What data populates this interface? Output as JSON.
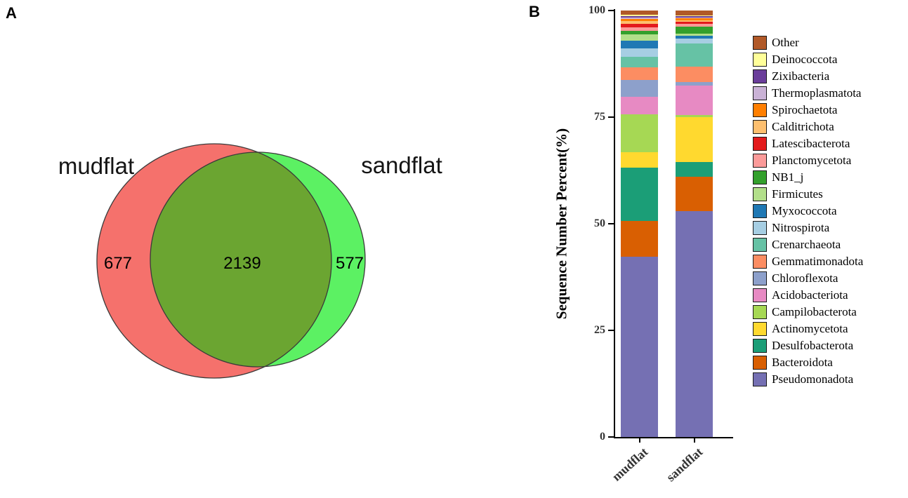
{
  "figure": {
    "panel_a_label": "A",
    "panel_b_label": "B"
  },
  "venn": {
    "left_label": "mudflat",
    "right_label": "sandflat",
    "left_only": "677",
    "overlap": "2139",
    "right_only": "577",
    "left_color": "#F5716C",
    "right_color": "#5CF163",
    "overlap_color": "#6BA531",
    "outline_color": "#3A3A3A"
  },
  "chart_data": [
    {
      "type": "venn",
      "sets": [
        "mudflat",
        "sandflat"
      ],
      "values": {
        "mudflat_only": 677,
        "overlap": 2139,
        "sandflat_only": 577
      }
    },
    {
      "type": "bar",
      "stacked": true,
      "ylabel": "Sequence Number Percent(%)",
      "ylim": [
        0,
        100
      ],
      "yticks": [
        0,
        25,
        50,
        75,
        100
      ],
      "categories": [
        "mudflat",
        "sandflat"
      ],
      "legend_position": "right",
      "series": [
        {
          "name": "Pseudomonadota",
          "color": "#7570B3",
          "values": [
            42.2,
            53.0
          ]
        },
        {
          "name": "Bacteroidota",
          "color": "#D95F02",
          "values": [
            8.5,
            8.0
          ]
        },
        {
          "name": "Desulfobacterota",
          "color": "#1B9E77",
          "values": [
            12.5,
            3.5
          ]
        },
        {
          "name": "Actinomycetota",
          "color": "#FFD92F",
          "values": [
            3.5,
            10.5
          ]
        },
        {
          "name": "Campilobacterota",
          "color": "#A6D854",
          "values": [
            9.0,
            0.5
          ]
        },
        {
          "name": "Acidobacteriota",
          "color": "#E78AC3",
          "values": [
            4.0,
            7.0
          ]
        },
        {
          "name": "Chloroflexota",
          "color": "#8DA0CB",
          "values": [
            4.0,
            0.8
          ]
        },
        {
          "name": "Gemmatimonadota",
          "color": "#FC8D62",
          "values": [
            3.0,
            3.5
          ]
        },
        {
          "name": "Crenarchaeota",
          "color": "#66C2A5",
          "values": [
            2.5,
            5.5
          ]
        },
        {
          "name": "Nitrospirota",
          "color": "#A6CEE3",
          "values": [
            2.0,
            1.2
          ]
        },
        {
          "name": "Myxococcota",
          "color": "#1F78B4",
          "values": [
            1.8,
            0.6
          ]
        },
        {
          "name": "Firmicutes",
          "color": "#B2DF8A",
          "values": [
            1.4,
            0.5
          ]
        },
        {
          "name": "NB1_j",
          "color": "#33A02C",
          "values": [
            0.9,
            1.6
          ]
        },
        {
          "name": "Planctomycetota",
          "color": "#FB9A99",
          "values": [
            0.8,
            0.7
          ]
        },
        {
          "name": "Latescibacterota",
          "color": "#E31A1C",
          "values": [
            0.8,
            0.5
          ]
        },
        {
          "name": "Calditrichota",
          "color": "#FDBF6F",
          "values": [
            0.6,
            0.4
          ]
        },
        {
          "name": "Spirochaetota",
          "color": "#FF7F00",
          "values": [
            0.5,
            0.4
          ]
        },
        {
          "name": "Thermoplasmatota",
          "color": "#CAB2D6",
          "values": [
            0.4,
            0.3
          ]
        },
        {
          "name": "Zixibacteria",
          "color": "#6A3D9A",
          "values": [
            0.3,
            0.2
          ]
        },
        {
          "name": "Deinococcota",
          "color": "#FFFF99",
          "values": [
            0.3,
            0.3
          ]
        },
        {
          "name": "Other",
          "color": "#B15928",
          "values": [
            1.0,
            1.0
          ]
        }
      ]
    }
  ]
}
